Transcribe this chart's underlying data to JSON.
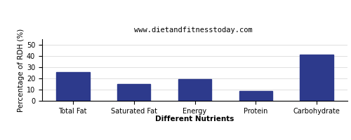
{
  "subtitle": "www.dietandfitnesstoday.com",
  "categories": [
    "Total Fat",
    "Saturated Fat",
    "Energy",
    "Protein",
    "Carbohydrate"
  ],
  "values": [
    25.6,
    14.7,
    19.2,
    8.7,
    41.2
  ],
  "bar_color": "#2d3a8c",
  "ylabel": "Percentage of RDH (%)",
  "xlabel": "Different Nutrients",
  "ylim": [
    0,
    55
  ],
  "yticks": [
    0,
    10,
    20,
    30,
    40,
    50
  ],
  "background_color": "#ffffff",
  "title_fontsize": 7.5,
  "subtitle_fontsize": 7.5,
  "axis_label_fontsize": 7.5,
  "tick_fontsize": 7
}
